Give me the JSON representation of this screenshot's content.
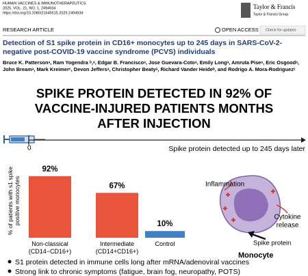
{
  "header": {
    "journal": "HUMAN VACCINES & IMMUNOTHERAPEUTICS",
    "volume": "2025, VOL. 21, NO. 1, 2494934",
    "doi": "https://doi.org/10.1080/21645515.2025.2494934",
    "publisher": "Taylor & Francis",
    "publisher_group": "Taylor & Francis Group",
    "article_type": "RESEARCH ARTICLE",
    "open_access": "OPEN ACCESS",
    "updates": "Check for updates"
  },
  "article": {
    "title": "Detection of S1 spike protein in CD16+ monocytes up to 245 days in SARS-CoV-2-negative post-COVID-19 vaccine syndrome (PCVS) individuals",
    "authors": "Bruce K. Pattersonᵃ, Ram Yogendra ᵇ,ᵃ, Edgar B. Franciscoᵃ, Jose Guevara-Cotoᵃ, Emily Longᵃ, Amruta Piseᵃ, Eric Osgoodᵃ, John Breamᵃ, Mark Kreimerᶜ, Devon Jeffersᵃ, Christopher Beatyᵃ, Richard Vander Heideᵇ, and Rodrigo A. Mora-Rodriguezᶜ"
  },
  "infographic": {
    "headline_lines": [
      "SPIKE PROTEIN DETECTED IN 92% OF",
      "VACCINE-INJURED PATIENTS MONTHS",
      "AFTER INJECTION"
    ],
    "timeline_start": "0",
    "timeline_label": "Spike protein detected up to 245 days later",
    "inflammation": "Inflammation",
    "cytokine_lines": [
      "Cytokine",
      "release"
    ],
    "spike_protein": "Spike protein",
    "monocyte": "Monocyte",
    "bullets": [
      "S1 protein detected in immune cells long after mRNA/adenoviral vaccines",
      "Strong link to chronic symptoms (fatigue, brain fog, neuropathy, POTS)"
    ]
  },
  "chart_data": {
    "type": "bar",
    "y_label": "% of patients with s1 spike positive monocytes",
    "categories": [
      "Non-classical (CD14−CD16+)",
      "Intermediate (CD14+CD16+)",
      "Control"
    ],
    "values": [
      92,
      67,
      10
    ],
    "value_labels": [
      "92%",
      "67%",
      "10%"
    ],
    "colors": [
      "#e8553a",
      "#e8553a",
      "#3f80c6"
    ],
    "ylim": [
      0,
      100
    ]
  }
}
